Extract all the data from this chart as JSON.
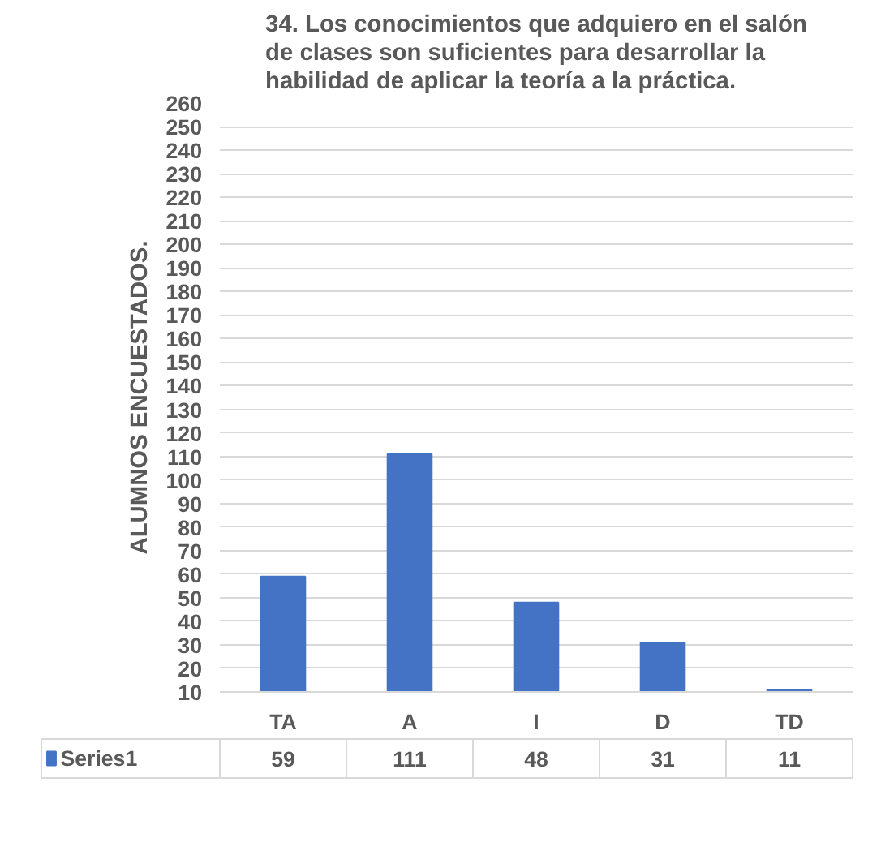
{
  "chart_data": {
    "type": "bar",
    "title": "34. Los conocimientos que adquiero en el salón de clases son suficientes para desarrollar la habilidad de aplicar la teoría a la práctica.",
    "ylabel": "ALUMNOS ENCUESTADOS.",
    "categories": [
      "TA",
      "A",
      "I",
      "D",
      "TD"
    ],
    "series": [
      {
        "name": "Series1",
        "color": "#4472c4",
        "values": [
          59,
          111,
          48,
          31,
          11
        ]
      }
    ],
    "ylim": [
      10,
      260
    ],
    "yticks": [
      10,
      20,
      30,
      40,
      50,
      60,
      70,
      80,
      90,
      100,
      110,
      120,
      130,
      140,
      150,
      160,
      170,
      180,
      190,
      200,
      210,
      220,
      230,
      240,
      250,
      260
    ],
    "grid": "y",
    "data_labels": true
  }
}
